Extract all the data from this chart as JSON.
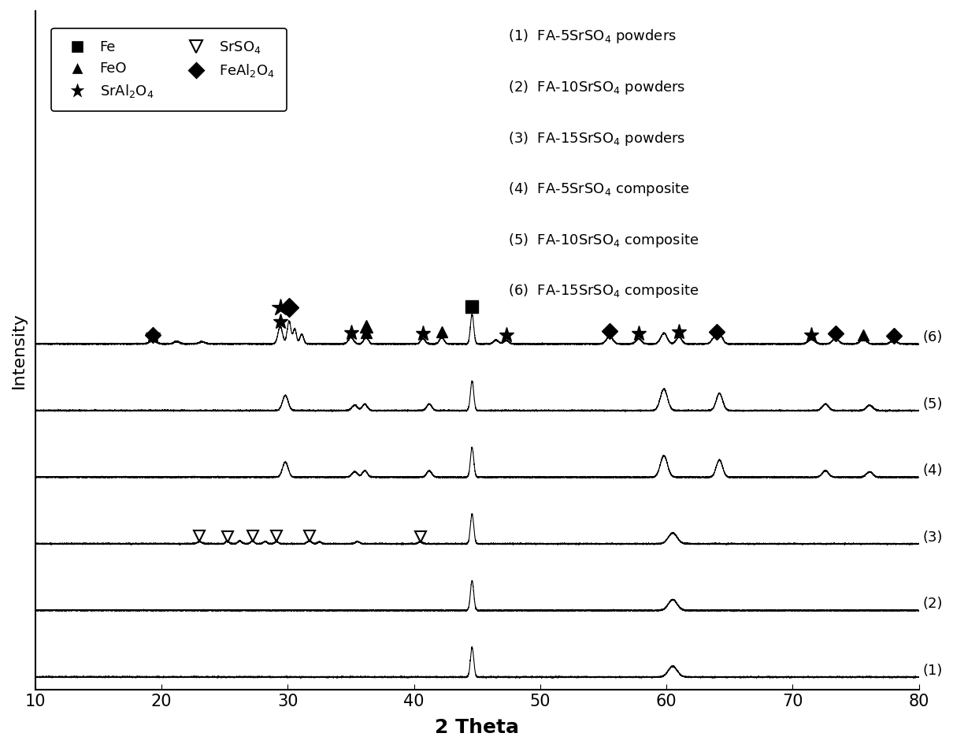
{
  "xlim": [
    10,
    80
  ],
  "xlabel": "2 Theta",
  "ylabel": "Intensity",
  "xlabel_fontsize": 18,
  "ylabel_fontsize": 16,
  "tick_fontsize": 15,
  "background_color": "#ffffff",
  "line_color": "#000000",
  "series_labels": [
    "(1)",
    "(2)",
    "(3)",
    "(4)",
    "(5)",
    "(6)"
  ],
  "noise_seed": 42,
  "y_offsets": [
    0.0,
    0.105,
    0.21,
    0.315,
    0.42,
    0.525
  ],
  "ylim": [
    -0.02,
    1.05
  ]
}
